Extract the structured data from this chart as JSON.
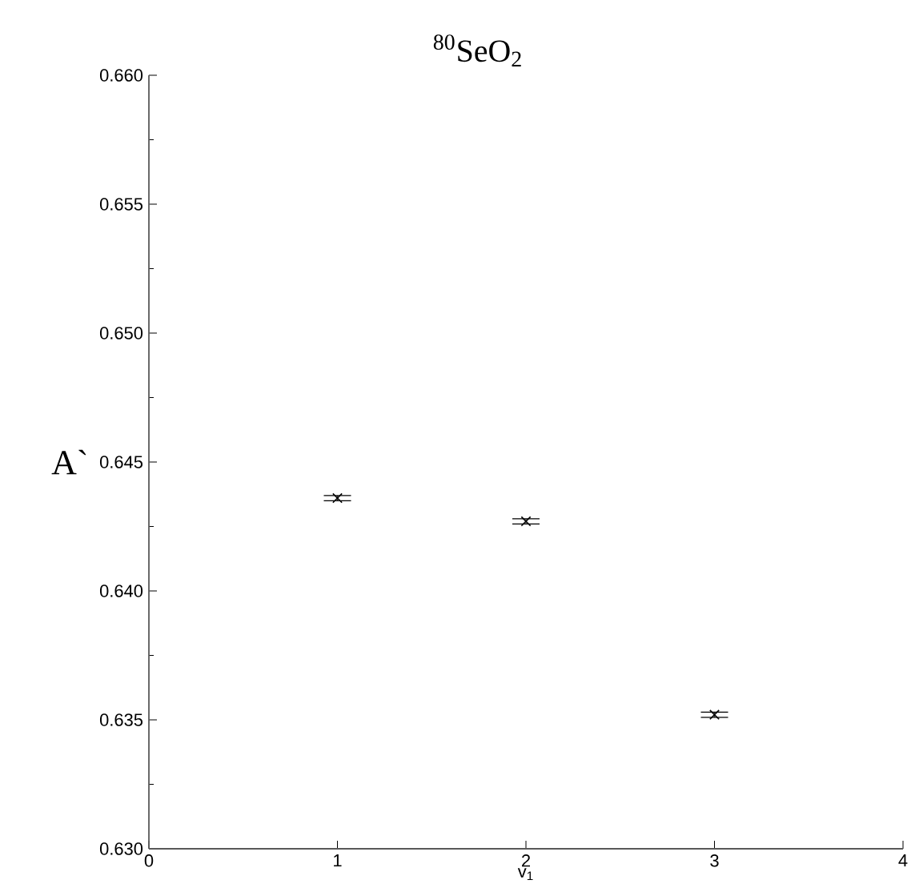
{
  "chart_data": {
    "type": "scatter",
    "title": "$^{80}$SeO$_{2}$",
    "xlabel": "v$_{1}$",
    "ylabel": "A`",
    "x": [
      1,
      2,
      3
    ],
    "values": [
      0.6436,
      0.6427,
      0.6352
    ],
    "errors": [
      0.0001,
      0.0001,
      0.0001
    ],
    "color": "#000000",
    "marker": "cross",
    "xlim": [
      0,
      4
    ],
    "xticks": [
      0,
      1,
      2,
      3,
      4
    ],
    "ylim": [
      0.63,
      0.66
    ],
    "yticks": [
      {
        "value": 0.63,
        "label": "0.630"
      },
      {
        "value": 0.635,
        "label": "0.635"
      },
      {
        "value": 0.64,
        "label": "0.640"
      },
      {
        "value": 0.645,
        "label": "0.645"
      },
      {
        "value": 0.65,
        "label": "0.650"
      },
      {
        "value": 0.655,
        "label": "0.655"
      },
      {
        "value": 0.66,
        "label": "0.660"
      }
    ],
    "grid": false
  }
}
